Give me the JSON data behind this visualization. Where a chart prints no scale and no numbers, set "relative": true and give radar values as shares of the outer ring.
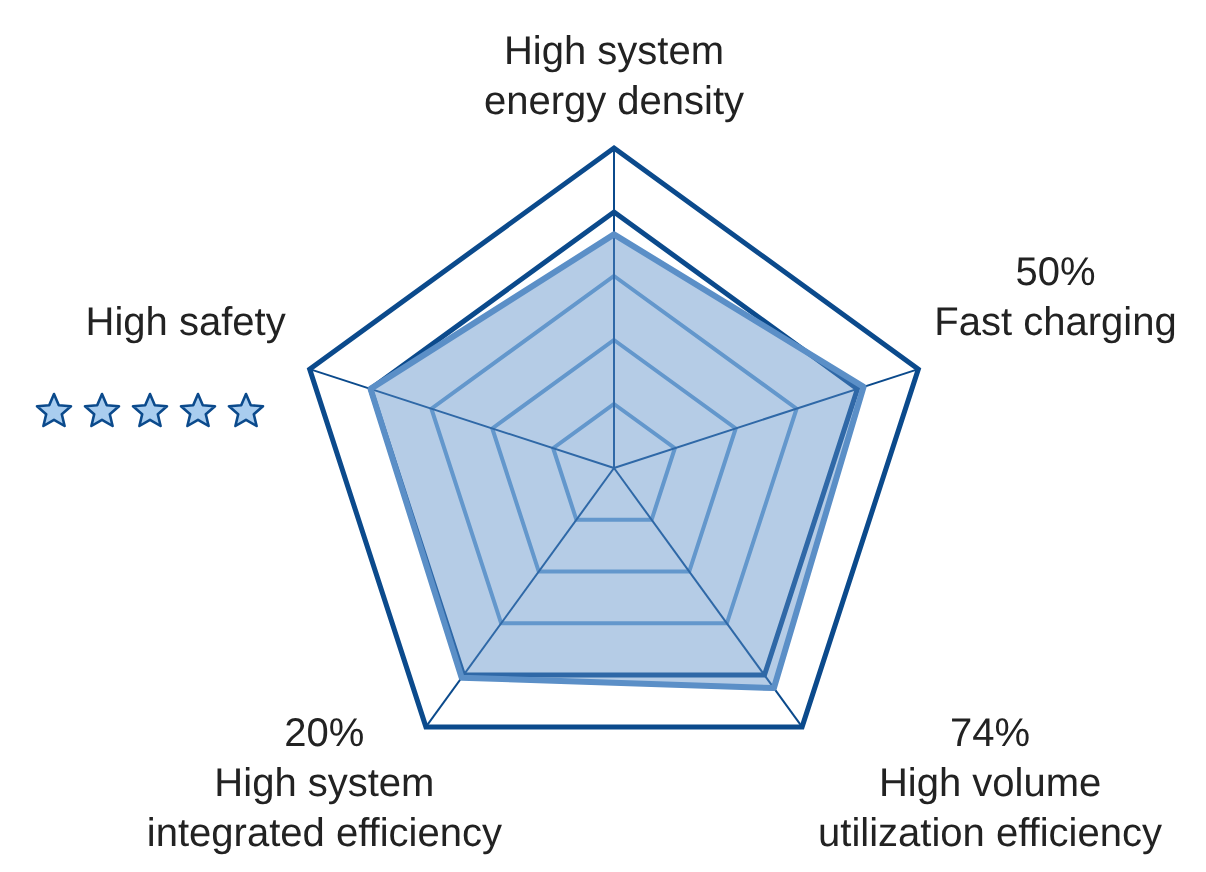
{
  "chart_data": {
    "type": "radar",
    "relative": true,
    "grid": true,
    "legend": false,
    "marker": "none",
    "categories": [
      "High system energy density",
      "Fast charging",
      "High volume utilization efficiency",
      "High system integrated efficiency",
      "High safety"
    ],
    "series": [
      {
        "color": "#5b8fc7",
        "values": [
          0.73,
          0.82,
          0.85,
          0.81,
          0.8
        ]
      }
    ],
    "annotations": [
      {
        "text": "50%",
        "x": "Fast charging"
      },
      {
        "text": "74%",
        "x": "High volume utilization efficiency"
      },
      {
        "text": "20%",
        "x": "High system integrated efficiency"
      }
    ]
  }
}
